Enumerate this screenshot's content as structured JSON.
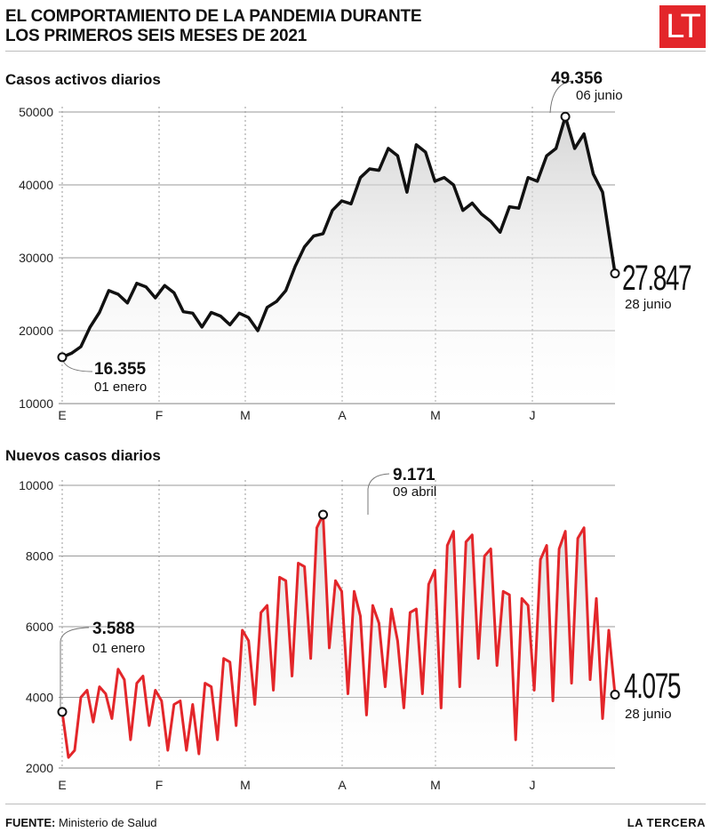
{
  "header": {
    "title_line1": "EL COMPORTAMIENTO DE LA PANDEMIA DURANTE",
    "title_line2": "LOS PRIMEROS SEIS MESES DE 2021",
    "logo": "LT"
  },
  "footer": {
    "source_label": "FUENTE:",
    "source": "Ministerio de Salud",
    "brand": "LA TERCERA"
  },
  "colors": {
    "active": "#111111",
    "new": "#e3262a",
    "grid": "#9a9a9a",
    "logo": "#e3262a"
  },
  "chart_data": [
    {
      "type": "area",
      "title": "Casos activos diarios",
      "xticks": [
        "E",
        "F",
        "M",
        "A",
        "M",
        "J"
      ],
      "ylim": [
        10000,
        50000
      ],
      "yticks": [
        10000,
        20000,
        30000,
        40000,
        50000
      ],
      "ytick_labels": [
        "10000",
        "20000",
        "30000",
        "40000",
        "50000"
      ],
      "x": [
        1,
        4,
        7,
        10,
        13,
        16,
        19,
        22,
        25,
        28,
        31,
        34,
        37,
        40,
        43,
        46,
        49,
        52,
        55,
        58,
        61,
        64,
        67,
        70,
        73,
        76,
        79,
        82,
        85,
        88,
        91,
        94,
        97,
        100,
        103,
        106,
        109,
        112,
        115,
        118,
        121,
        124,
        127,
        130,
        133,
        136,
        139,
        142,
        145,
        148,
        151,
        154,
        157,
        160,
        163,
        166,
        169,
        172,
        175,
        179
      ],
      "values": [
        16355,
        16900,
        17800,
        20500,
        22500,
        25500,
        25000,
        23800,
        26500,
        26000,
        24500,
        26200,
        25200,
        22600,
        22400,
        20500,
        22500,
        22000,
        20800,
        22400,
        21800,
        20000,
        23200,
        24000,
        25500,
        28800,
        31500,
        33000,
        33300,
        36500,
        37800,
        37400,
        41000,
        42200,
        42000,
        45000,
        44000,
        39000,
        45500,
        44500,
        40500,
        41000,
        40000,
        36500,
        37500,
        36000,
        35000,
        33500,
        37000,
        36800,
        41000,
        40500,
        44000,
        45000,
        49356,
        45000,
        47000,
        41500,
        39000,
        27847
      ],
      "annotations": [
        {
          "value": "16.355",
          "date": "01 enero"
        },
        {
          "value": "49.356",
          "date": "06 junio"
        },
        {
          "value": "27.847",
          "date": "28 junio"
        }
      ]
    },
    {
      "type": "area",
      "title": "Nuevos casos diarios",
      "xticks": [
        "E",
        "F",
        "M",
        "A",
        "M",
        "J"
      ],
      "ylim": [
        2000,
        10000
      ],
      "yticks": [
        2000,
        4000,
        6000,
        8000,
        10000
      ],
      "ytick_labels": [
        "2000",
        "4000",
        "6000",
        "8000",
        "10000"
      ],
      "x": [
        1,
        3,
        5,
        7,
        9,
        11,
        13,
        15,
        17,
        19,
        21,
        23,
        25,
        27,
        29,
        31,
        33,
        35,
        37,
        39,
        41,
        43,
        45,
        47,
        49,
        51,
        53,
        55,
        57,
        59,
        61,
        63,
        65,
        67,
        69,
        71,
        73,
        75,
        77,
        79,
        81,
        83,
        85,
        87,
        89,
        91,
        93,
        95,
        97,
        99,
        101,
        103,
        105,
        107,
        109,
        111,
        113,
        115,
        117,
        119,
        121,
        123,
        125,
        127,
        129,
        131,
        133,
        135,
        137,
        139,
        141,
        143,
        145,
        147,
        149,
        151,
        153,
        155,
        157,
        159,
        161,
        163,
        165,
        167,
        169,
        171,
        173,
        175,
        177,
        179
      ],
      "values": [
        3588,
        2300,
        2500,
        4000,
        4200,
        3300,
        4300,
        4100,
        3400,
        4800,
        4500,
        2800,
        4400,
        4600,
        3200,
        4200,
        3900,
        2500,
        3800,
        3900,
        2500,
        3800,
        2400,
        4400,
        4300,
        2800,
        5100,
        5000,
        3200,
        5900,
        5600,
        3800,
        6400,
        6600,
        4200,
        7400,
        7300,
        4600,
        7800,
        7700,
        5100,
        8800,
        9171,
        5400,
        7300,
        7000,
        4100,
        7000,
        6300,
        3500,
        6600,
        6100,
        4300,
        6500,
        5600,
        3700,
        6400,
        6500,
        4100,
        7200,
        7600,
        3700,
        8300,
        8700,
        4300,
        8400,
        8600,
        5100,
        8000,
        8200,
        4900,
        7000,
        6900,
        2800,
        6800,
        6600,
        4200,
        7900,
        8300,
        3900,
        8200,
        8700,
        4400,
        8500,
        8800,
        4500,
        6800,
        3400,
        5900,
        4075
      ],
      "annotations": [
        {
          "value": "3.588",
          "date": "01 enero"
        },
        {
          "value": "9.171",
          "date": "09 abril"
        },
        {
          "value": "4.075",
          "date": "28 junio"
        }
      ]
    }
  ]
}
